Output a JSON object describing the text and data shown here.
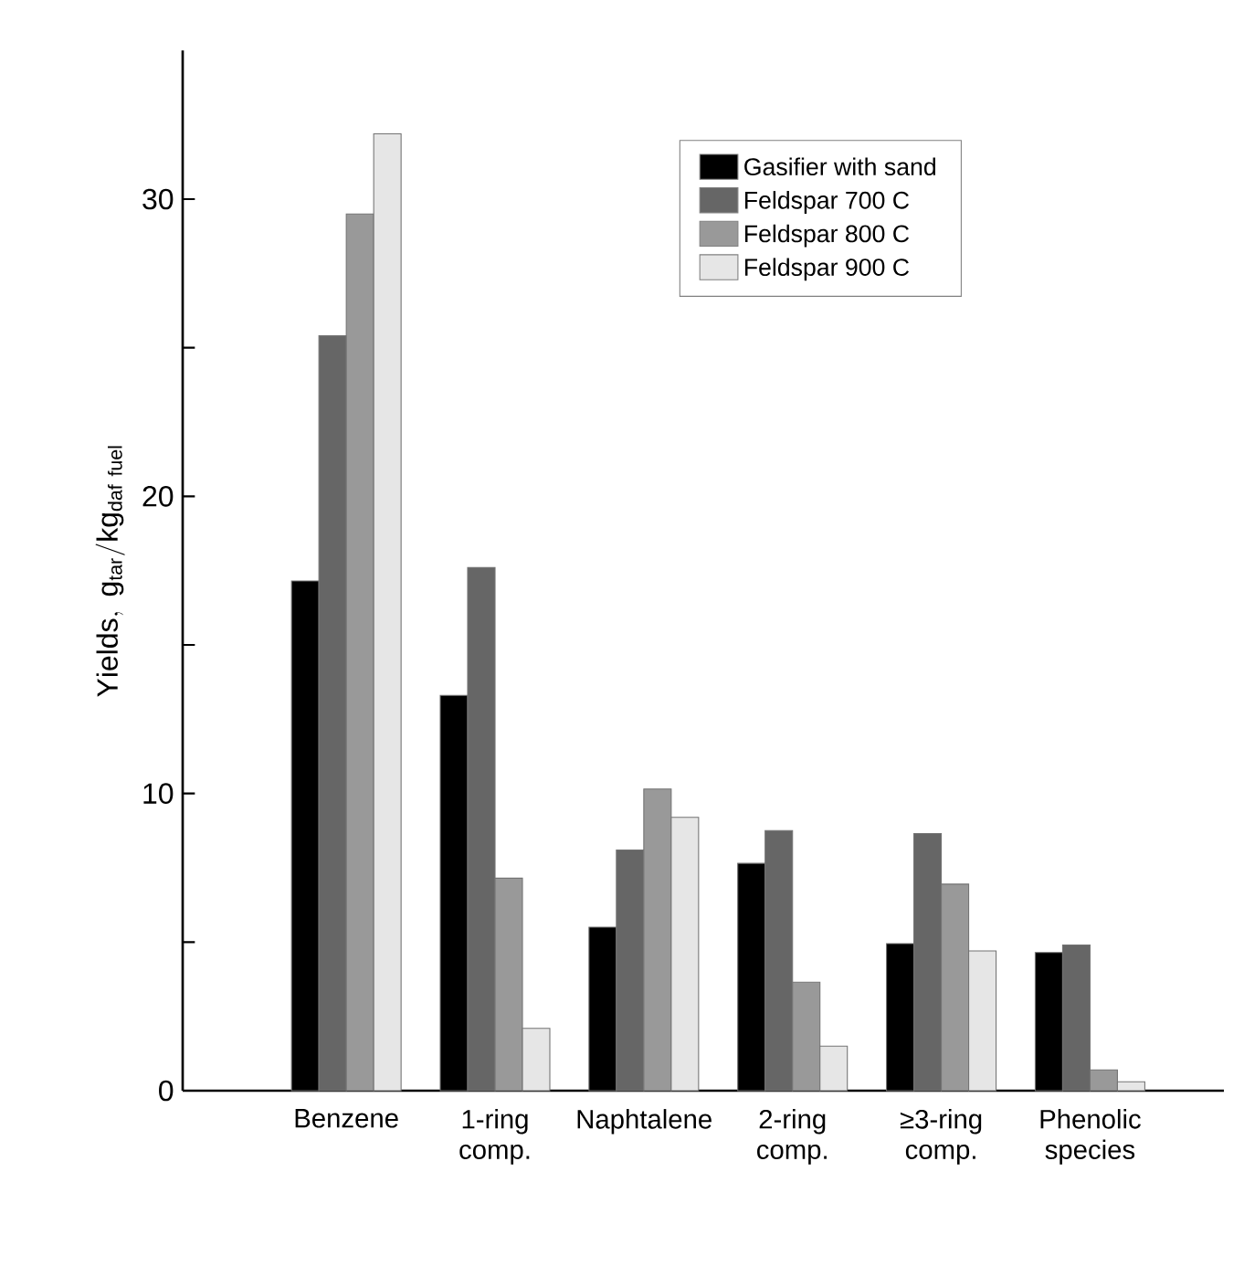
{
  "chart_data": {
    "type": "bar",
    "ylabel": "\\mathrm{Yields,\\ g_{tar}/kg_{daf\\ fuel}}",
    "categories": [
      "Benzene",
      "1-ring comp.",
      "Naphtalene",
      "2-ring comp.",
      "≥3-ring comp.",
      "Phenolic species"
    ],
    "series": [
      {
        "name": "Gasifier with sand",
        "color": "#000000",
        "values": [
          17.15,
          13.3,
          5.5,
          7.65,
          4.95,
          4.65
        ]
      },
      {
        "name": "Feldspar 700 C",
        "color": "#666666",
        "values": [
          25.4,
          17.6,
          8.1,
          8.75,
          8.65,
          4.9
        ]
      },
      {
        "name": "Feldspar 800 C",
        "color": "#999999",
        "values": [
          29.5,
          7.15,
          10.15,
          3.65,
          6.95,
          0.7
        ]
      },
      {
        "name": "Feldspar 900 C",
        "color": "#e6e6e6",
        "values": [
          32.2,
          2.1,
          9.2,
          1.5,
          4.7,
          0.3
        ]
      }
    ],
    "ylim": [
      0,
      35
    ],
    "yticks": [
      0,
      {
        "value": 5,
        "label": null
      },
      10,
      {
        "value": 15,
        "label": null
      },
      20,
      {
        "value": 25,
        "label": null
      },
      30
    ],
    "legend": "top right",
    "grid": false
  }
}
